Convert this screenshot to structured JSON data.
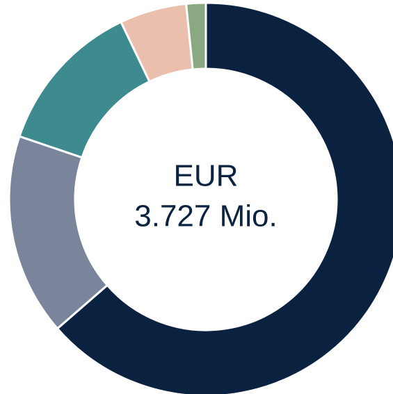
{
  "chart_data": {
    "type": "donut",
    "categories": [
      null,
      null,
      null,
      null,
      null
    ],
    "values": [
      63.6,
      16.6,
      12.7,
      5.5,
      1.6
    ],
    "colors": [
      "#0a2240",
      "#7a849b",
      "#3d8b8f",
      "#ebbfae",
      "#8aa882"
    ],
    "center_text": [
      "EUR",
      "3.727 Mio."
    ]
  }
}
